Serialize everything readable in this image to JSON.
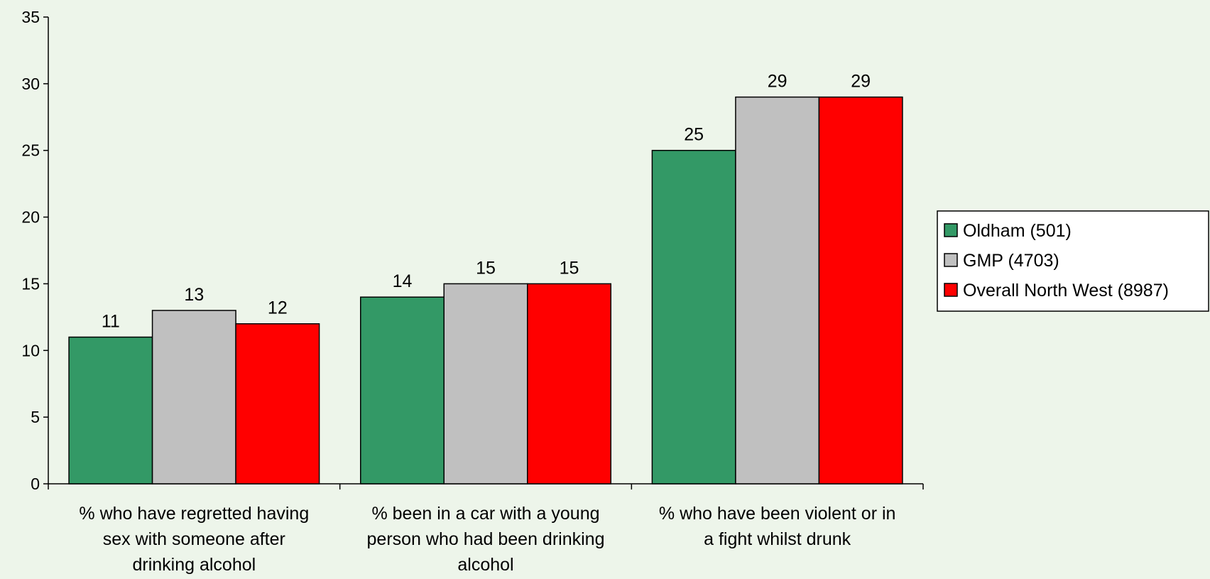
{
  "chart_data": {
    "type": "bar",
    "categories": [
      [
        "% who have regretted having",
        "sex with someone after",
        "drinking alcohol"
      ],
      [
        "% been in a car with a young",
        "person who had been drinking",
        "alcohol"
      ],
      [
        "% who have been violent or in",
        "a fight whilst drunk"
      ]
    ],
    "series": [
      {
        "name": "Oldham (501)",
        "color": "#339966",
        "values": [
          11,
          14,
          25
        ]
      },
      {
        "name": "GMP (4703)",
        "color": "#c0c0c0",
        "values": [
          13,
          15,
          29
        ]
      },
      {
        "name": "Overall North West (8987)",
        "color": "#ff0000",
        "values": [
          12,
          15,
          29
        ]
      }
    ],
    "ylim": [
      0,
      35
    ],
    "ytick_step": 5,
    "data_labels": true,
    "grid": false,
    "legend_position": "right",
    "background": "#edf5ea"
  }
}
